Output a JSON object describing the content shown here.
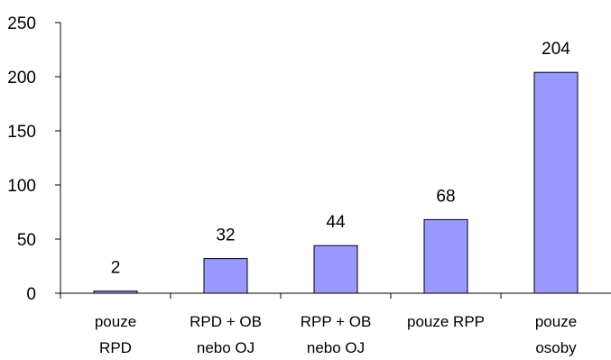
{
  "chart_data": {
    "type": "bar",
    "categories": [
      [
        "pouze",
        "RPD"
      ],
      [
        "RPD + OB",
        "nebo OJ"
      ],
      [
        "RPP + OB",
        "nebo OJ"
      ],
      [
        "pouze RPP"
      ],
      [
        "pouze",
        "osoby"
      ]
    ],
    "values": [
      2,
      32,
      44,
      68,
      204
    ],
    "ylim": [
      0,
      250
    ],
    "yticks": [
      0,
      50,
      100,
      150,
      200,
      250
    ],
    "title": "",
    "xlabel": "",
    "ylabel": "",
    "grid": false,
    "legend": "none",
    "bar_color": "#9999ff",
    "bar_border_color": "#000000",
    "data_labels": [
      "2",
      "32",
      "44",
      "68",
      "204"
    ]
  }
}
